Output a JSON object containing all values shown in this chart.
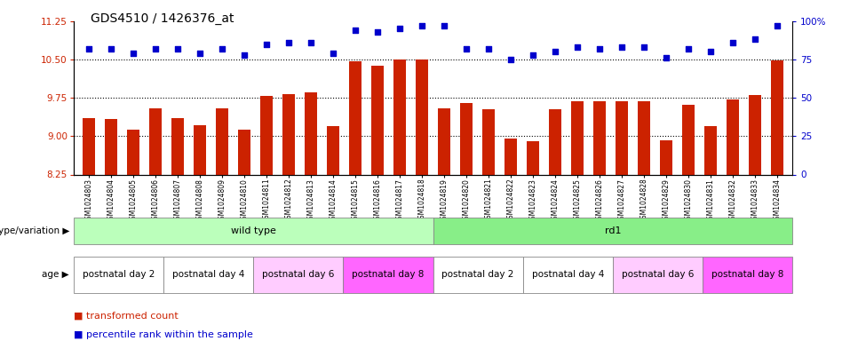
{
  "title": "GDS4510 / 1426376_at",
  "samples": [
    "GSM1024803",
    "GSM1024804",
    "GSM1024805",
    "GSM1024806",
    "GSM1024807",
    "GSM1024808",
    "GSM1024809",
    "GSM1024810",
    "GSM1024811",
    "GSM1024812",
    "GSM1024813",
    "GSM1024814",
    "GSM1024815",
    "GSM1024816",
    "GSM1024817",
    "GSM1024818",
    "GSM1024819",
    "GSM1024820",
    "GSM1024821",
    "GSM1024822",
    "GSM1024823",
    "GSM1024824",
    "GSM1024825",
    "GSM1024826",
    "GSM1024827",
    "GSM1024828",
    "GSM1024829",
    "GSM1024830",
    "GSM1024831",
    "GSM1024832",
    "GSM1024833",
    "GSM1024834"
  ],
  "transformed_count": [
    9.35,
    9.33,
    9.12,
    9.55,
    9.35,
    9.22,
    9.55,
    9.12,
    9.78,
    9.82,
    9.85,
    9.2,
    10.46,
    10.38,
    10.5,
    10.5,
    9.55,
    9.65,
    9.53,
    8.95,
    8.9,
    9.52,
    9.68,
    9.68,
    9.68,
    9.68,
    8.92,
    9.62,
    9.2,
    9.72,
    9.8,
    10.48
  ],
  "percentile": [
    82,
    82,
    79,
    82,
    82,
    79,
    82,
    78,
    85,
    86,
    86,
    79,
    94,
    93,
    95,
    97,
    97,
    82,
    82,
    75,
    78,
    80,
    83,
    82,
    83,
    83,
    76,
    82,
    80,
    86,
    88,
    97
  ],
  "ylim_left": [
    8.25,
    11.25
  ],
  "ylim_right": [
    0,
    100
  ],
  "yticks_left": [
    8.25,
    9.0,
    9.75,
    10.5,
    11.25
  ],
  "yticks_right": [
    0,
    25,
    50,
    75,
    100
  ],
  "hlines": [
    9.0,
    9.75,
    10.5
  ],
  "bar_color": "#cc2200",
  "scatter_color": "#0000cc",
  "genotype_groups": [
    {
      "label": "wild type",
      "start": 0,
      "end": 16,
      "color": "#bbffbb"
    },
    {
      "label": "rd1",
      "start": 16,
      "end": 32,
      "color": "#88ee88"
    }
  ],
  "age_groups": [
    {
      "label": "postnatal day 2",
      "start": 0,
      "end": 4,
      "color": "#ffffff"
    },
    {
      "label": "postnatal day 4",
      "start": 4,
      "end": 8,
      "color": "#ffffff"
    },
    {
      "label": "postnatal day 6",
      "start": 8,
      "end": 12,
      "color": "#ffccff"
    },
    {
      "label": "postnatal day 8",
      "start": 12,
      "end": 16,
      "color": "#ff66ff"
    },
    {
      "label": "postnatal day 2",
      "start": 16,
      "end": 20,
      "color": "#ffffff"
    },
    {
      "label": "postnatal day 4",
      "start": 20,
      "end": 24,
      "color": "#ffffff"
    },
    {
      "label": "postnatal day 6",
      "start": 24,
      "end": 28,
      "color": "#ffccff"
    },
    {
      "label": "postnatal day 8",
      "start": 28,
      "end": 32,
      "color": "#ff66ff"
    }
  ],
  "title_fontsize": 10,
  "axis_label_color_left": "#cc2200",
  "axis_label_color_right": "#0000cc",
  "bar_width": 0.55
}
